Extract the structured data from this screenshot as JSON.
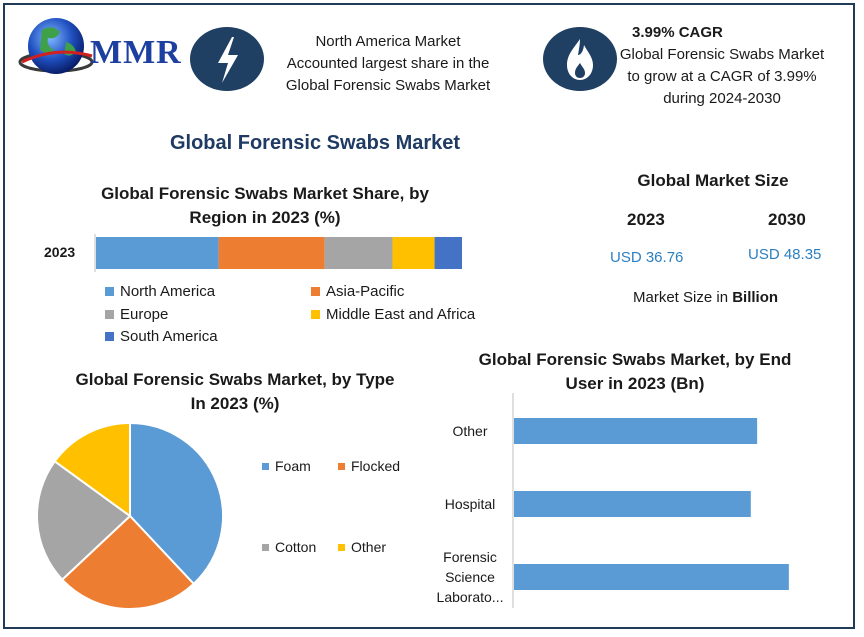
{
  "brand": {
    "name": "MMR"
  },
  "info_boxes": [
    {
      "icon": "lightning-icon",
      "heading": "",
      "text": [
        "North America Market",
        "Accounted largest share in the",
        "Global Forensic Swabs Market"
      ]
    },
    {
      "icon": "flame-icon",
      "heading": "3.99% CAGR",
      "text": [
        "Global Forensic Swabs Market",
        "to grow at a CAGR of 3.99%",
        "during 2024-2030"
      ]
    }
  ],
  "main_title": "Global Forensic Swabs Market",
  "market_size": {
    "title": "Global Market Size",
    "years": [
      "2023",
      "2030"
    ],
    "values": [
      "USD 36.76",
      "USD 48.35"
    ],
    "note_prefix": "Market Size in ",
    "note_bold": "Billion"
  },
  "colors": {
    "blue": "#5b9bd5",
    "orange": "#ed7d31",
    "gray": "#a5a5a5",
    "yellow": "#ffc000",
    "darkblue": "#4472c4",
    "navy": "#1f3f63"
  },
  "chart_data": [
    {
      "type": "bar",
      "orientation": "horizontal-stacked",
      "title": "Global Forensic Swabs Market Share, by Region in 2023 (%)",
      "categories": [
        "2023"
      ],
      "series": [
        {
          "name": "North America",
          "values": [
            33.5
          ]
        },
        {
          "name": "Asia-Pacific",
          "values": [
            29
          ]
        },
        {
          "name": "Europe",
          "values": [
            18.5
          ]
        },
        {
          "name": "Middle East and Africa",
          "values": [
            11.5
          ]
        },
        {
          "name": "South America",
          "values": [
            7.5
          ]
        }
      ],
      "legend": "bottom"
    },
    {
      "type": "pie",
      "title": "Global Forensic Swabs Market, by Type In 2023 (%)",
      "categories": [
        "Foam",
        "Flocked",
        "Cotton",
        "Other"
      ],
      "values": [
        38,
        25,
        22,
        15
      ],
      "legend": "right"
    },
    {
      "type": "bar",
      "orientation": "horizontal",
      "title": "Global Forensic Swabs Market, by End User in 2023 (Bn)",
      "categories": [
        "Other",
        "Hospital",
        "Forensic Science Laborato..."
      ],
      "values": [
        11.5,
        11.2,
        13.0
      ],
      "xlim": [
        0,
        14
      ],
      "grid": false
    }
  ]
}
